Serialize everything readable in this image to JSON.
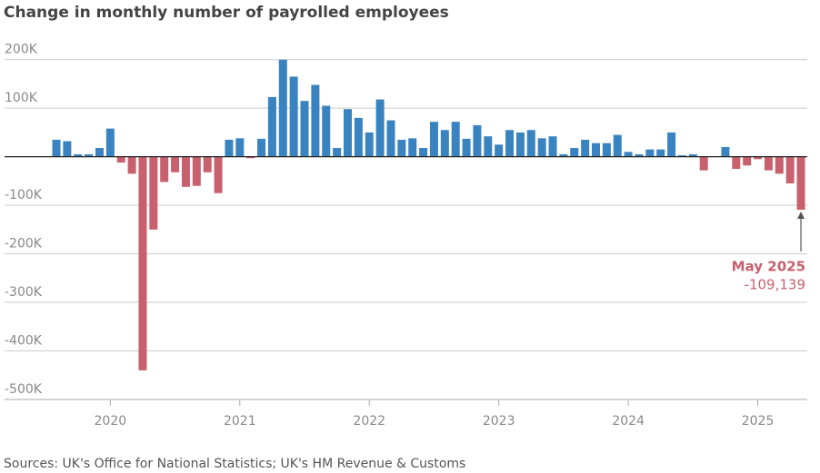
{
  "chart_data": {
    "type": "bar",
    "title": "Change in monthly number of payrolled employees",
    "source": "Sources: UK's Office for National Statistics; UK's HM Revenue & Customs",
    "annotation": "May 2025",
    "categories": [
      null,
      null,
      null,
      null,
      null,
      "2020",
      null,
      null,
      null,
      null,
      null,
      null,
      null,
      null,
      null,
      null,
      null,
      "2021",
      null,
      null,
      null,
      null,
      null,
      null,
      null,
      null,
      null,
      null,
      null,
      "2022",
      null,
      null,
      null,
      null,
      null,
      null,
      null,
      null,
      null,
      null,
      null,
      "2023",
      null,
      null,
      null,
      null,
      null,
      null,
      null,
      null,
      null,
      null,
      null,
      "2024",
      null,
      null,
      null,
      null,
      null,
      null,
      null,
      null,
      null,
      null,
      null,
      "2025",
      null,
      null,
      null,
      null
    ],
    "values": [
      35,
      32,
      5,
      5,
      18,
      58,
      -12,
      -35,
      -440,
      -150,
      -52,
      -32,
      -62,
      -60,
      -32,
      -75,
      35,
      38,
      -3,
      37,
      123,
      200,
      165,
      115,
      148,
      105,
      18,
      98,
      80,
      50,
      118,
      75,
      35,
      38,
      18,
      72,
      55,
      72,
      37,
      65,
      42,
      25,
      55,
      50,
      55,
      38,
      42,
      5,
      18,
      35,
      28,
      28,
      45,
      10,
      5,
      15,
      15,
      50,
      3,
      5,
      -28,
      0,
      20,
      -25,
      -18,
      -5,
      -28,
      -35,
      -55,
      -109.139
    ],
    "value_labels": [
      null,
      null,
      null,
      null,
      null,
      null,
      null,
      null,
      null,
      null,
      null,
      null,
      null,
      null,
      null,
      null,
      null,
      null,
      null,
      null,
      null,
      null,
      null,
      null,
      null,
      null,
      null,
      null,
      null,
      null,
      null,
      null,
      null,
      null,
      null,
      null,
      null,
      null,
      null,
      null,
      null,
      null,
      null,
      null,
      null,
      null,
      null,
      null,
      null,
      null,
      null,
      null,
      null,
      null,
      null,
      null,
      null,
      null,
      null,
      null,
      null,
      null,
      null,
      null,
      null,
      null,
      null,
      null,
      null,
      "-109,139"
    ],
    "colors": {
      "positive": "#3a83c1",
      "negative": "#c8606e"
    },
    "ylim": [
      -500,
      220
    ],
    "yticks": [
      {
        "value": 200,
        "label": "200K"
      },
      {
        "value": 100,
        "label": "100K"
      },
      0,
      {
        "value": -100,
        "label": "-100K"
      },
      {
        "value": -200,
        "label": "-200K"
      },
      {
        "value": -300,
        "label": "-300K"
      },
      {
        "value": -400,
        "label": "-400K"
      },
      {
        "value": -500,
        "label": "-500K"
      }
    ],
    "grid": true
  }
}
